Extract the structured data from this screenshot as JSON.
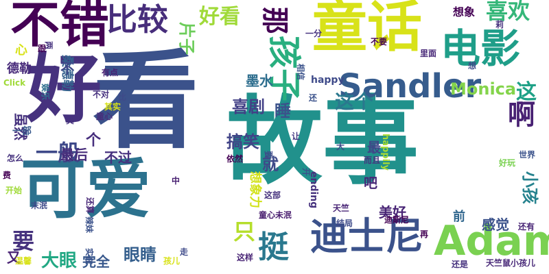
{
  "words": [
    {
      "text": "看",
      "color": "#3b528b"
    },
    {
      "text": "故事",
      "color": "#21918c"
    },
    {
      "text": "童话",
      "color": "#d8e219"
    },
    {
      "text": "好",
      "color": "#46327e"
    },
    {
      "text": "可爱",
      "color": "#2c728e"
    },
    {
      "text": "不错",
      "color": "#440154"
    },
    {
      "text": "电影",
      "color": "#1f9e89"
    },
    {
      "text": "Adam",
      "color": "#7ad151"
    },
    {
      "text": "迪士尼",
      "color": "#3b528b"
    },
    {
      "text": "Sandler",
      "color": "#365c8d"
    },
    {
      "text": "比较",
      "color": "#472d7b"
    },
    {
      "text": "孩子",
      "color": "#29af7f"
    },
    {
      "text": "好看",
      "color": "#a0da39"
    },
    {
      "text": "喜欢",
      "color": "#35b779"
    },
    {
      "text": "那",
      "color": "#440154"
    },
    {
      "text": "啊",
      "color": "#482173"
    },
    {
      "text": "挺",
      "color": "#2a788e"
    },
    {
      "text": "只",
      "color": "#b5de2b"
    },
    {
      "text": "要",
      "color": "#46327e"
    },
    {
      "text": "一般",
      "color": "#3e4989"
    },
    {
      "text": "睡",
      "color": "#3b528b"
    },
    {
      "text": "这个",
      "color": "#2a788e"
    },
    {
      "text": "Monica",
      "color": "#84d44b"
    },
    {
      "text": "这",
      "color": "#1fa187"
    },
    {
      "text": "喜剧",
      "color": "#424086"
    },
    {
      "text": "搞笑",
      "color": "#414487"
    },
    {
      "text": "大眼",
      "color": "#22a884"
    },
    {
      "text": "眼睛",
      "color": "#355f8d"
    },
    {
      "text": "小孩",
      "color": "#26828e"
    },
    {
      "text": "美好",
      "color": "#482475"
    },
    {
      "text": "就",
      "color": "#3e4a89"
    },
    {
      "text": "最后",
      "color": "#472c7a"
    },
    {
      "text": "不过",
      "color": "#46307e"
    },
    {
      "text": "完全",
      "color": "#38588c"
    },
    {
      "text": "片子",
      "color": "#6ccd5a"
    },
    {
      "text": "墨水",
      "color": "#2e6e8e"
    },
    {
      "text": "想象",
      "color": "#440154"
    },
    {
      "text": "虽然",
      "color": "#46327e"
    },
    {
      "text": "德勒",
      "color": "#472a7a"
    },
    {
      "text": "桑德勒",
      "color": "#34618d"
    },
    {
      "text": "不",
      "color": "#3e4989"
    },
    {
      "text": "心",
      "color": "#d8e219"
    },
    {
      "text": "感觉",
      "color": "#3b528b"
    },
    {
      "text": "前",
      "color": "#31678e"
    },
    {
      "text": "最",
      "color": "#3f4788"
    },
    {
      "text": "个",
      "color": "#472f7d"
    },
    {
      "text": "吧",
      "color": "#482878"
    },
    {
      "text": "又",
      "color": "#482173"
    },
    {
      "text": "想象力",
      "color": "#d2e21b"
    },
    {
      "text": "happy",
      "color": "#3e4a89"
    },
    {
      "text": "ending",
      "color": "#46327e"
    },
    {
      "text": "happily",
      "color": "#a8db34"
    },
    {
      "text": "一部",
      "color": "#38598c"
    },
    {
      "text": "开始",
      "color": "#a0da39"
    },
    {
      "text": "Click",
      "color": "#a0da39"
    },
    {
      "text": "娱乐",
      "color": "#2e6f8e"
    },
    {
      "text": "有点",
      "color": "#482173"
    },
    {
      "text": "不对",
      "color": "#46307e"
    },
    {
      "text": "其实",
      "color": "#d8e219"
    },
    {
      "text": "比",
      "color": "#3e4a89"
    },
    {
      "text": "童心",
      "color": "#472d7b"
    },
    {
      "text": "真",
      "color": "#46327e"
    },
    {
      "text": "还",
      "color": "#3b528b"
    },
    {
      "text": "让",
      "color": "#443983"
    },
    {
      "text": "大",
      "color": "#3e4989"
    },
    {
      "text": "依然",
      "color": "#440154"
    },
    {
      "text": "中",
      "color": "#482071"
    },
    {
      "text": "还算",
      "color": "#482878"
    },
    {
      "text": "末泯",
      "color": "#3e4a89"
    },
    {
      "text": "这部",
      "color": "#46327e"
    },
    {
      "text": "童心未泯",
      "color": "#481c6e"
    },
    {
      "text": "天竺",
      "color": "#482475"
    },
    {
      "text": "辣妹",
      "color": "#3b528b"
    },
    {
      "text": "结局",
      "color": "#3e4a89"
    },
    {
      "text": "迪斯尼",
      "color": "#440154"
    },
    {
      "text": "而且",
      "color": "#46327e"
    },
    {
      "text": "好玩",
      "color": "#7ad151"
    },
    {
      "text": "世界",
      "color": "#3b528b"
    },
    {
      "text": "一分",
      "color": "#46327e"
    },
    {
      "text": "不要",
      "color": "#440154"
    },
    {
      "text": "里面",
      "color": "#482878"
    },
    {
      "text": "想",
      "color": "#3e4a89"
    },
    {
      "text": "莉",
      "color": "#46327e"
    },
    {
      "text": "相信",
      "color": "#3b528b"
    },
    {
      "text": "再",
      "color": "#440154"
    },
    {
      "text": "还有",
      "color": "#482475"
    },
    {
      "text": "还是",
      "color": "#46327e"
    },
    {
      "text": "天竺鼠小孩儿",
      "color": "#482878"
    },
    {
      "text": "走",
      "color": "#3e4a89"
    },
    {
      "text": "孩儿",
      "color": "#d8e219"
    },
    {
      "text": "实在",
      "color": "#3b528b"
    },
    {
      "text": "这样",
      "color": "#482475"
    },
    {
      "text": "温馨",
      "color": "#d8e219"
    },
    {
      "text": "两",
      "color": "#46327e"
    },
    {
      "text": "跟",
      "color": "#440154"
    },
    {
      "text": "要",
      "color": "#3e4a89"
    },
    {
      "text": "怎么",
      "color": "#46327e"
    },
    {
      "text": "费",
      "color": "#440154"
    },
    {
      "text": "开",
      "color": "#3b528b"
    }
  ]
}
